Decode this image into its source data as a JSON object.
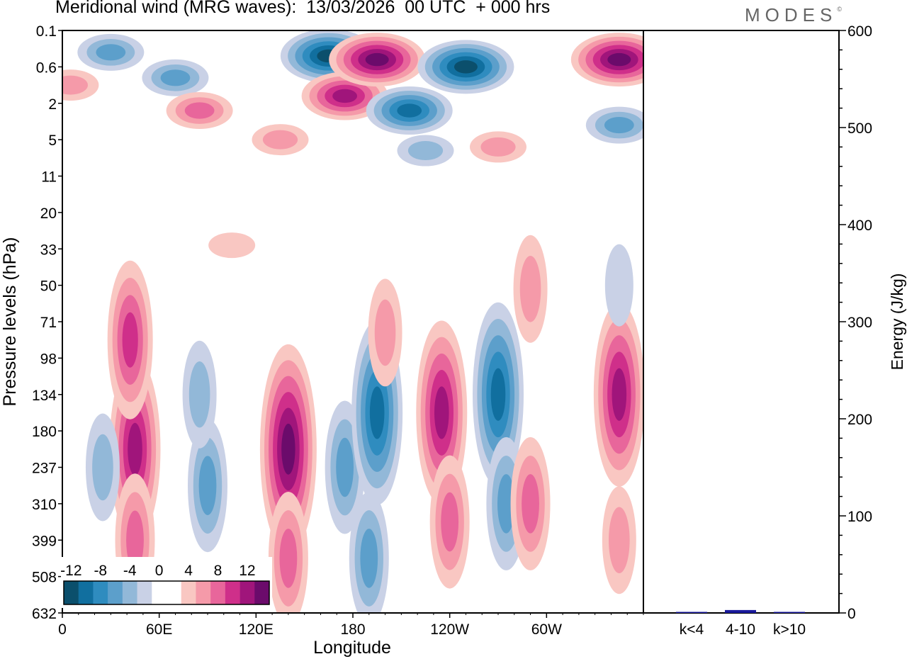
{
  "title": "Meridional wind (MRG waves):  13/03/2026  00 UTC  + 000 hrs",
  "brand": "MODES",
  "brand_mark": "©",
  "colors": {
    "neg": [
      "#0b4f6c",
      "#116f9f",
      "#2f8cbf",
      "#5c9fcb",
      "#92b8d8",
      "#c9d1e6"
    ],
    "pos": [
      "#f9c7c2",
      "#f59aa9",
      "#e8669b",
      "#cf2f8a",
      "#a0157b",
      "#6b0b6b"
    ],
    "axis": "#000000",
    "bar": "#1a1a9c"
  },
  "chart_data": [
    {
      "type": "heatmap",
      "title": "Meridional wind (MRG waves)",
      "xlabel": "Longitude",
      "ylabel": "Pressure levels (hPa)",
      "x_ticks": [
        "0",
        "60E",
        "120E",
        "180",
        "120W",
        "60W"
      ],
      "y_ticks": [
        "0.1",
        "0.6",
        "2",
        "5",
        "11",
        "20",
        "33",
        "50",
        "71",
        "98",
        "134",
        "180",
        "237",
        "310",
        "399",
        "508",
        "632"
      ],
      "colorbar": {
        "labels": [
          "-12",
          "-8",
          "-4",
          "0",
          "4",
          "8",
          "12"
        ],
        "levels": [
          -14,
          -12,
          -10,
          -8,
          -6,
          -4,
          -2,
          2,
          4,
          6,
          8,
          10,
          12
        ]
      },
      "features": [
        {
          "lon": 45,
          "lev": 11.5,
          "value": 10
        },
        {
          "lon": 42,
          "lev": 8.5,
          "value": 8
        },
        {
          "lon": 45,
          "lev": 14.0,
          "value": 5
        },
        {
          "lon": 25,
          "lev": 12.0,
          "value": -4
        },
        {
          "lon": 90,
          "lev": 12.5,
          "value": -6
        },
        {
          "lon": 85,
          "lev": 10.0,
          "value": -4
        },
        {
          "lon": 140,
          "lev": 11.5,
          "value": 13
        },
        {
          "lon": 140,
          "lev": 14.5,
          "value": 6
        },
        {
          "lon": 175,
          "lev": 12.0,
          "value": -6
        },
        {
          "lon": 195,
          "lev": 10.5,
          "value": -10
        },
        {
          "lon": 190,
          "lev": 14.5,
          "value": -5
        },
        {
          "lon": 235,
          "lev": 10.5,
          "value": 9
        },
        {
          "lon": 240,
          "lev": 13.5,
          "value": 6
        },
        {
          "lon": 270,
          "lev": 10.0,
          "value": -10
        },
        {
          "lon": 275,
          "lev": 13.0,
          "value": -5
        },
        {
          "lon": 290,
          "lev": 13.0,
          "value": 5
        },
        {
          "lon": 345,
          "lev": 10.0,
          "value": 9
        },
        {
          "lon": 345,
          "lev": 14.0,
          "value": 4
        },
        {
          "lon": 200,
          "lev": 8.3,
          "value": 3
        },
        {
          "lon": 290,
          "lev": 7.1,
          "value": 3
        },
        {
          "lon": 345,
          "lev": 7.0,
          "value": -2
        },
        {
          "lon": 30,
          "lev": 0.6,
          "value": -5
        },
        {
          "lon": 5,
          "lev": 1.5,
          "value": 4
        },
        {
          "lon": 70,
          "lev": 1.3,
          "value": -6
        },
        {
          "lon": 85,
          "lev": 2.2,
          "value": 6
        },
        {
          "lon": 165,
          "lev": 0.7,
          "value": -12
        },
        {
          "lon": 175,
          "lev": 1.8,
          "value": 10
        },
        {
          "lon": 195,
          "lev": 0.8,
          "value": 15
        },
        {
          "lon": 250,
          "lev": 1.0,
          "value": -13
        },
        {
          "lon": 215,
          "lev": 2.2,
          "value": -9
        },
        {
          "lon": 345,
          "lev": 0.8,
          "value": 14
        },
        {
          "lon": 345,
          "lev": 2.6,
          "value": -5
        },
        {
          "lon": 135,
          "lev": 3.0,
          "value": 4
        },
        {
          "lon": 225,
          "lev": 3.3,
          "value": -4
        },
        {
          "lon": 270,
          "lev": 3.2,
          "value": 3
        },
        {
          "lon": 105,
          "lev": 5.9,
          "value": 2
        }
      ]
    },
    {
      "type": "bar",
      "ylabel": "Energy (J/kg)",
      "categories": [
        "k<4",
        "4-10",
        "k>10"
      ],
      "values": [
        0.5,
        3,
        0.5
      ],
      "ylim": [
        0,
        600
      ],
      "y_ticks": [
        "0",
        "100",
        "200",
        "300",
        "400",
        "500",
        "600"
      ]
    }
  ]
}
